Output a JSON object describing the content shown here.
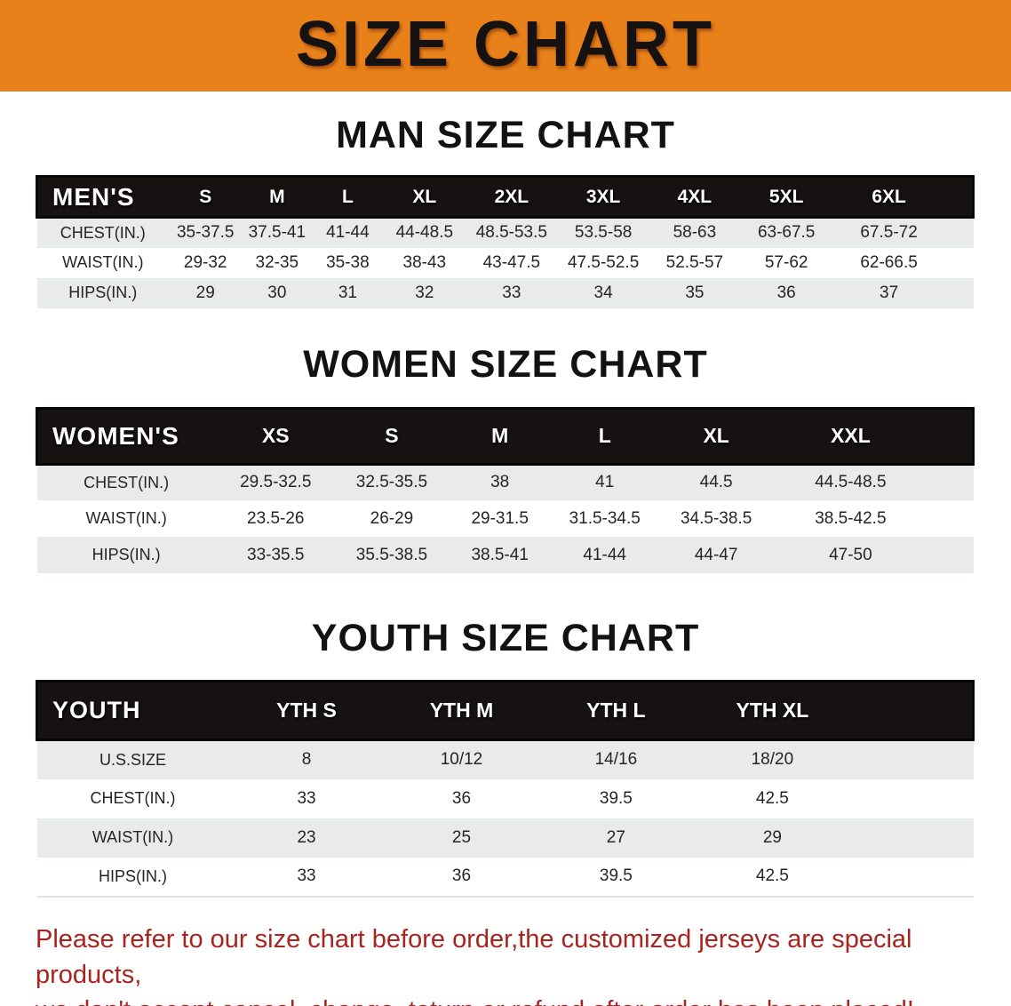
{
  "colors": {
    "banner-orange": "#e8811a",
    "header-black": "#171212",
    "row-gray": "#e9eaea",
    "warning-red": "#a8241e",
    "title-black": "#171212"
  },
  "banner": {
    "title": "SIZE CHART"
  },
  "sections": [
    {
      "heading": "MAN SIZE CHART",
      "table": {
        "header": [
          "MEN'S",
          "S",
          "M",
          "L",
          "XL",
          "2XL",
          "3XL",
          "4XL",
          "5XL",
          "6XL"
        ],
        "rows": [
          {
            "label": "CHEST(IN.)",
            "values": [
              "35-37.5",
              "37.5-41",
              "41-44",
              "44-48.5",
              "48.5-53.5",
              "53.5-58",
              "58-63",
              "63-67.5",
              "67.5-72"
            ]
          },
          {
            "label": "WAIST(IN.)",
            "values": [
              "29-32",
              "32-35",
              "35-38",
              "38-43",
              "43-47.5",
              "47.5-52.5",
              "52.5-57",
              "57-62",
              "62-66.5"
            ]
          },
          {
            "label": "HIPS(IN.)",
            "values": [
              "29",
              "30",
              "31",
              "32",
              "33",
              "34",
              "35",
              "36",
              "37"
            ]
          }
        ]
      }
    },
    {
      "heading": "WOMEN SIZE CHART",
      "table": {
        "header": [
          "WOMEN'S",
          "XS",
          "S",
          "M",
          "L",
          "XL",
          "XXL"
        ],
        "rows": [
          {
            "label": "CHEST(IN.)",
            "values": [
              "29.5-32.5",
              "32.5-35.5",
              "38",
              "41",
              "44.5",
              "44.5-48.5"
            ]
          },
          {
            "label": "WAIST(IN.)",
            "values": [
              "23.5-26",
              "26-29",
              "29-31.5",
              "31.5-34.5",
              "34.5-38.5",
              "38.5-42.5"
            ]
          },
          {
            "label": "HIPS(IN.)",
            "values": [
              "33-35.5",
              "35.5-38.5",
              "38.5-41",
              "41-44",
              "44-47",
              "47-50"
            ]
          }
        ]
      }
    },
    {
      "heading": "YOUTH SIZE CHART",
      "table": {
        "header": [
          "YOUTH",
          "YTH S",
          "YTH M",
          "YTH L",
          "YTH XL"
        ],
        "rows": [
          {
            "label": "U.S.SIZE",
            "values": [
              "8",
              "10/12",
              "14/16",
              "18/20"
            ]
          },
          {
            "label": "CHEST(IN.)",
            "values": [
              "33",
              "36",
              "39.5",
              "42.5"
            ]
          },
          {
            "label": "WAIST(IN.)",
            "values": [
              "23",
              "25",
              "27",
              "29"
            ]
          },
          {
            "label": "HIPS(IN.)",
            "values": [
              "33",
              "36",
              "39.5",
              "42.5"
            ]
          }
        ]
      }
    }
  ],
  "disclaimer": {
    "line1": "Please refer to our size chart before order,the customized jerseys are special products,",
    "line2": "we don't accept cancel, change, teturn or refund after order has been placed!"
  }
}
